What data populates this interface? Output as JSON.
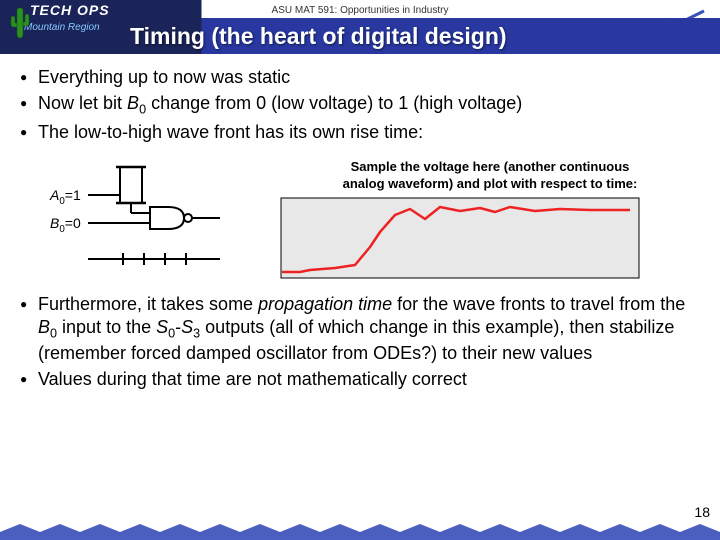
{
  "header": {
    "top_text": "ASU MAT 591: Opportunities in Industry",
    "title": "Timing (the heart of digital design)",
    "logo_main": "TECH OPS",
    "logo_sub": "Mountain Region"
  },
  "bullets_top": [
    "Everything up to now was static",
    "Now let bit B₀ change from 0 (low voltage) to 1 (high voltage)",
    "The low-to-high wave front has its own rise time:"
  ],
  "gate": {
    "inputA_label": "A",
    "inputA_sub": "0",
    "inputA_val": "=1",
    "inputB_label": "B",
    "inputB_sub": "0",
    "inputB_val": "=0"
  },
  "waveform": {
    "caption_line1": "Sample the voltage here (another continuous",
    "caption_line2": "analog waveform) and plot with respect to time:",
    "bg_color": "#e8e8e8",
    "line_color": "#ee2222",
    "line_width": 2.5,
    "points": [
      [
        2,
        75
      ],
      [
        20,
        75
      ],
      [
        30,
        73
      ],
      [
        55,
        71
      ],
      [
        75,
        68
      ],
      [
        90,
        50
      ],
      [
        100,
        35
      ],
      [
        115,
        18
      ],
      [
        130,
        12
      ],
      [
        145,
        22
      ],
      [
        160,
        10
      ],
      [
        180,
        14
      ],
      [
        200,
        11
      ],
      [
        215,
        15
      ],
      [
        230,
        10
      ],
      [
        255,
        14
      ],
      [
        280,
        12
      ],
      [
        310,
        13
      ],
      [
        350,
        13
      ]
    ]
  },
  "bullets_bottom_html": [
    "Furthermore, it takes some <span class='italic'>propagation time</span> for the wave fronts to travel from the <span class='italic'>B</span><span class='sub0'>0</span> input to the <span class='italic'>S</span><span class='sub0'>0</span>-<span class='italic'>S</span><span class='sub0'>3</span> outputs (all of which change in this example), then stabilize (remember forced damped oscillator from ODEs?) to their new values",
    "Values during that time are not mathematically correct"
  ],
  "page_number": "18",
  "colors": {
    "banner_dark": "#1a2458",
    "banner_blue": "#2838a0",
    "star": "#3850b8",
    "zigzag": "#4a5fc0"
  }
}
